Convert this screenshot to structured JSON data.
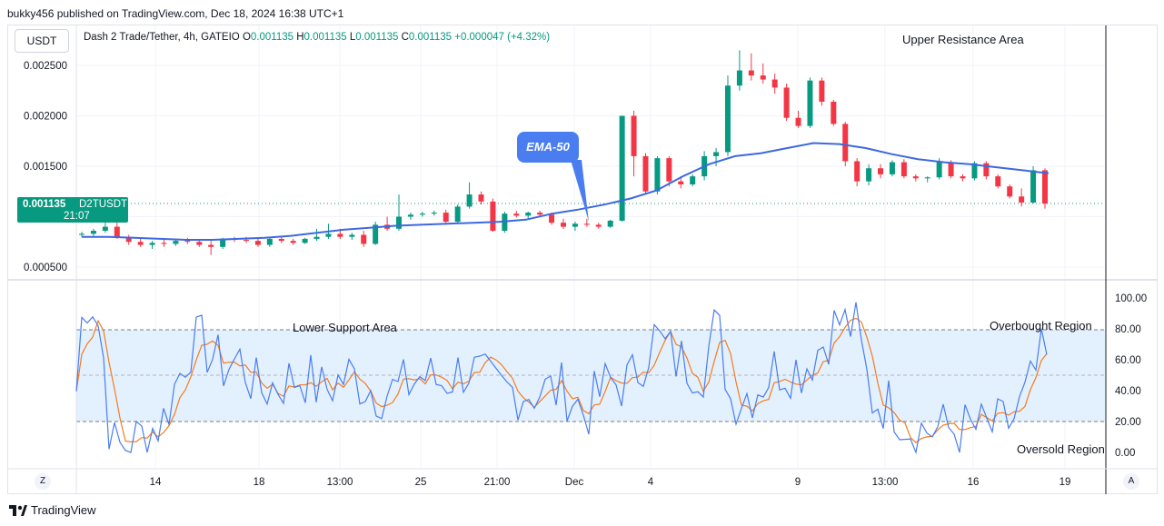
{
  "header": {
    "published": "bukky456 published on TradingView.com, Dec 18, 2024 16:38 UTC+1"
  },
  "toolbar": {
    "currency": "USDT"
  },
  "legend": {
    "symbol": "Dash 2 Trade/Tether, 4h, GATEIO",
    "open_label": "O",
    "open": "0.001135",
    "high_label": "H",
    "high": "0.001135",
    "low_label": "L",
    "low": "0.001135",
    "close_label": "C",
    "close": "0.001135",
    "change": "+0.000047 (+4.32%)"
  },
  "price_axis": {
    "ticks": [
      "0.002500",
      "0.002000",
      "0.001500",
      "0.000500"
    ]
  },
  "price_tag": {
    "price": "0.001135",
    "ticker": "D2TUSDT",
    "countdown": "21:07"
  },
  "rsi_axis": {
    "ticks": [
      "100.00",
      "80.00",
      "60.00",
      "40.00",
      "20.00",
      "0.00"
    ]
  },
  "time_axis": {
    "ticks": [
      "14",
      "18",
      "13:00",
      "25",
      "21:00",
      "Dec",
      "4",
      "9",
      "13:00",
      "16",
      "19"
    ]
  },
  "annotations": {
    "upper_resistance": "Upper Resistance Area",
    "lower_support": "Lower Support Area",
    "overbought": "Overbought Region",
    "oversold": "Oversold Region",
    "ema": "EMA-50"
  },
  "bottom": {
    "z_button": "Z",
    "a_button": "A",
    "logo": "TradingView"
  },
  "colors": {
    "up": "#089981",
    "down": "#f23645",
    "ema": "#3d68e0",
    "rsi_fast": "#4a7df0",
    "rsi_slow": "#f57c1f",
    "rsi_band": "#e3f0fd"
  },
  "chart_data": {
    "type": "candlestick",
    "symbol": "Dash 2 Trade/Tether",
    "timeframe": "4h",
    "ylim": [
      0.0004,
      0.0028
    ],
    "candles": [
      [
        0.00082,
        0.00085,
        0.0008,
        0.00083
      ],
      [
        0.00083,
        0.00088,
        0.00081,
        0.00086
      ],
      [
        0.00086,
        0.00095,
        0.00084,
        0.0009
      ],
      [
        0.0009,
        0.00105,
        0.00078,
        0.00079
      ],
      [
        0.00079,
        0.00082,
        0.00072,
        0.00075
      ],
      [
        0.00075,
        0.00078,
        0.0007,
        0.00072
      ],
      [
        0.00072,
        0.00076,
        0.00068,
        0.00074
      ],
      [
        0.00074,
        0.00077,
        0.0007,
        0.00073
      ],
      [
        0.00073,
        0.00078,
        0.00071,
        0.00076
      ],
      [
        0.00076,
        0.00079,
        0.00073,
        0.00075
      ],
      [
        0.00075,
        0.00078,
        0.0007,
        0.00072
      ],
      [
        0.00072,
        0.00076,
        0.00062,
        0.0007
      ],
      [
        0.0007,
        0.00079,
        0.00068,
        0.00078
      ],
      [
        0.00078,
        0.0008,
        0.00075,
        0.00077
      ],
      [
        0.00077,
        0.0008,
        0.00074,
        0.00076
      ],
      [
        0.00076,
        0.00078,
        0.0007,
        0.00072
      ],
      [
        0.00072,
        0.00079,
        0.0007,
        0.00078
      ],
      [
        0.00078,
        0.0008,
        0.00074,
        0.00076
      ],
      [
        0.00076,
        0.00078,
        0.00072,
        0.00074
      ],
      [
        0.00074,
        0.00079,
        0.00073,
        0.00078
      ],
      [
        0.00078,
        0.00088,
        0.00076,
        0.0008
      ],
      [
        0.0008,
        0.00093,
        0.00078,
        0.00083
      ],
      [
        0.00083,
        0.00088,
        0.00078,
        0.0008
      ],
      [
        0.0008,
        0.00084,
        0.00077,
        0.00082
      ],
      [
        0.00082,
        0.00086,
        0.0007,
        0.00073
      ],
      [
        0.00073,
        0.00095,
        0.00072,
        0.00092
      ],
      [
        0.00092,
        0.001,
        0.00086,
        0.00088
      ],
      [
        0.00088,
        0.00122,
        0.00086,
        0.001
      ],
      [
        0.001,
        0.00104,
        0.00097,
        0.00102
      ],
      [
        0.00102,
        0.00105,
        0.001,
        0.00103
      ],
      [
        0.00103,
        0.00106,
        0.00101,
        0.00104
      ],
      [
        0.00104,
        0.00107,
        0.00092,
        0.00095
      ],
      [
        0.00095,
        0.00112,
        0.00093,
        0.0011
      ],
      [
        0.0011,
        0.00134,
        0.00108,
        0.00122
      ],
      [
        0.00122,
        0.00125,
        0.00112,
        0.00115
      ],
      [
        0.00115,
        0.00118,
        0.00085,
        0.00086
      ],
      [
        0.00086,
        0.00105,
        0.00084,
        0.00103
      ],
      [
        0.00103,
        0.00106,
        0.00099,
        0.00101
      ],
      [
        0.00101,
        0.00105,
        0.00098,
        0.00104
      ],
      [
        0.00104,
        0.00106,
        0.001,
        0.00102
      ],
      [
        0.00102,
        0.00104,
        0.00092,
        0.00094
      ],
      [
        0.00094,
        0.00098,
        0.00088,
        0.0009
      ],
      [
        0.0009,
        0.00095,
        0.00086,
        0.00093
      ],
      [
        0.00093,
        0.00098,
        0.0009,
        0.00092
      ],
      [
        0.00092,
        0.00094,
        0.00088,
        0.0009
      ],
      [
        0.0009,
        0.00097,
        0.00089,
        0.00096
      ],
      [
        0.00096,
        0.002,
        0.00095,
        0.002
      ],
      [
        0.002,
        0.00205,
        0.0014,
        0.0016
      ],
      [
        0.0016,
        0.00163,
        0.00122,
        0.00125
      ],
      [
        0.00125,
        0.0016,
        0.00122,
        0.00158
      ],
      [
        0.00158,
        0.0016,
        0.0013,
        0.00135
      ],
      [
        0.00135,
        0.0014,
        0.00128,
        0.00132
      ],
      [
        0.00132,
        0.00142,
        0.0013,
        0.0014
      ],
      [
        0.0014,
        0.00165,
        0.00136,
        0.0016
      ],
      [
        0.0016,
        0.00168,
        0.0015,
        0.00164
      ],
      [
        0.00164,
        0.0024,
        0.0016,
        0.0023
      ],
      [
        0.0023,
        0.00265,
        0.00225,
        0.00245
      ],
      [
        0.00245,
        0.00262,
        0.00235,
        0.0024
      ],
      [
        0.0024,
        0.00252,
        0.00232,
        0.00236
      ],
      [
        0.00236,
        0.00242,
        0.00222,
        0.00228
      ],
      [
        0.00228,
        0.00232,
        0.00195,
        0.00198
      ],
      [
        0.00198,
        0.00205,
        0.00188,
        0.0019
      ],
      [
        0.0019,
        0.00238,
        0.00188,
        0.00235
      ],
      [
        0.00235,
        0.00238,
        0.0021,
        0.00214
      ],
      [
        0.00214,
        0.00216,
        0.0019,
        0.00192
      ],
      [
        0.00192,
        0.00194,
        0.0015,
        0.00155
      ],
      [
        0.00155,
        0.00158,
        0.0013,
        0.00135
      ],
      [
        0.00135,
        0.00152,
        0.00131,
        0.00148
      ],
      [
        0.00148,
        0.00152,
        0.00138,
        0.00142
      ],
      [
        0.00142,
        0.00156,
        0.0014,
        0.00154
      ],
      [
        0.00154,
        0.00157,
        0.00138,
        0.0014
      ],
      [
        0.0014,
        0.00142,
        0.00135,
        0.00138
      ],
      [
        0.00138,
        0.0014,
        0.00134,
        0.00139
      ],
      [
        0.00139,
        0.00158,
        0.00137,
        0.00154
      ],
      [
        0.00154,
        0.00156,
        0.00138,
        0.0014
      ],
      [
        0.0014,
        0.00142,
        0.00135,
        0.00138
      ],
      [
        0.00138,
        0.00155,
        0.00136,
        0.00153
      ],
      [
        0.00153,
        0.00155,
        0.00137,
        0.0014
      ],
      [
        0.0014,
        0.00142,
        0.00128,
        0.0013
      ],
      [
        0.0013,
        0.00132,
        0.00118,
        0.0012
      ],
      [
        0.0012,
        0.00128,
        0.0011,
        0.00114
      ],
      [
        0.00114,
        0.0015,
        0.00113,
        0.00146
      ],
      [
        0.00146,
        0.00148,
        0.00108,
        0.00113
      ]
    ],
    "ema_50": [
      0.0008,
      0.0008,
      0.00079,
      0.00078,
      0.00077,
      0.00077,
      0.00078,
      0.00079,
      0.00081,
      0.00084,
      0.00087,
      0.00089,
      0.00091,
      0.00092,
      0.00093,
      0.00094,
      0.00095,
      0.00097,
      0.00103,
      0.00107,
      0.00112,
      0.00118,
      0.00126,
      0.0014,
      0.00152,
      0.0016,
      0.00163,
      0.00168,
      0.00173,
      0.00172,
      0.00168,
      0.00162,
      0.00157,
      0.00154,
      0.00152,
      0.00149,
      0.00146,
      0.00143
    ],
    "rsi_levels": {
      "overbought": 80,
      "middle": 50,
      "oversold": 20
    },
    "rsi_ylim": [
      0,
      100
    ]
  }
}
